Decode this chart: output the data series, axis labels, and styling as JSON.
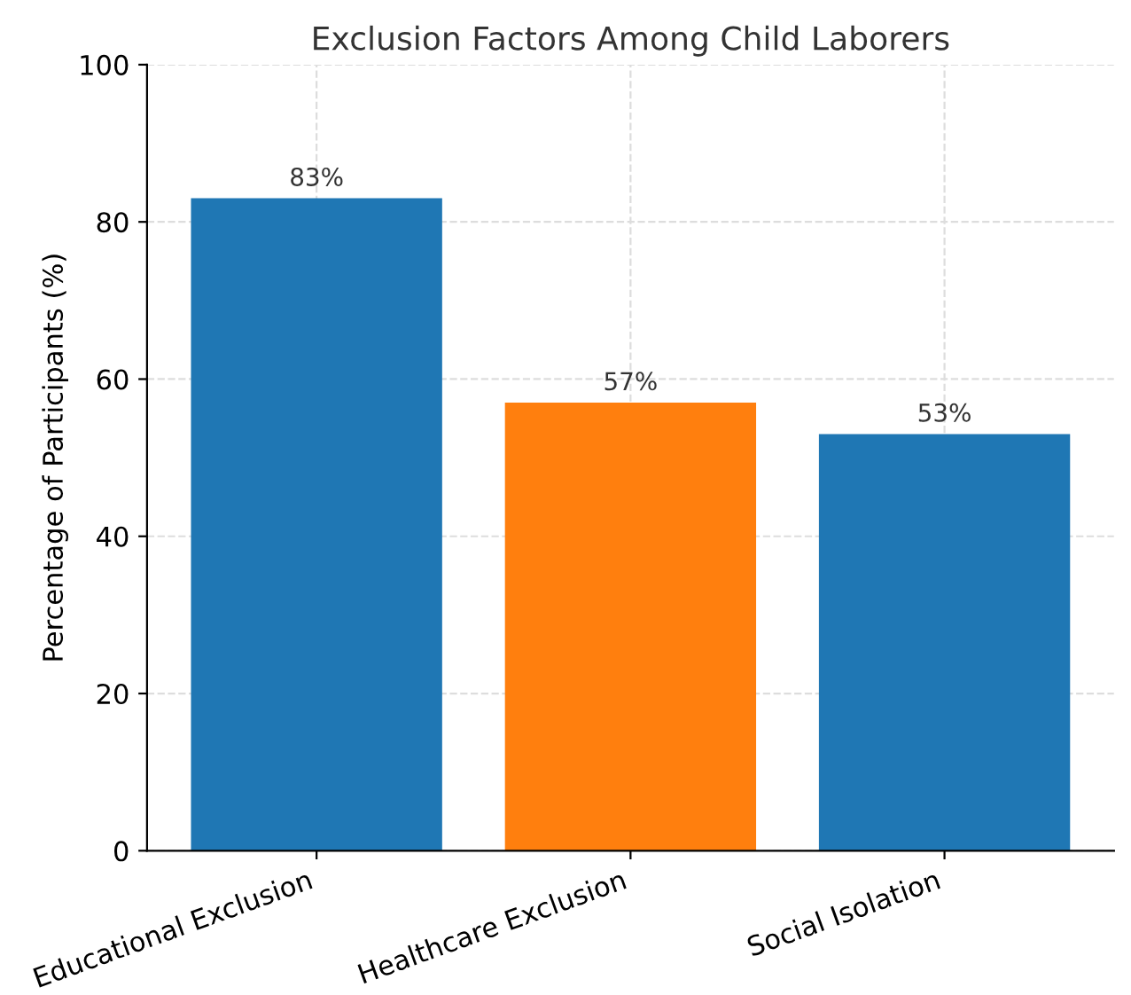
{
  "chart_data": {
    "type": "bar",
    "title": "Exclusion Factors Among Child Laborers",
    "ylabel": "Percentage of Participants (%)",
    "categories": [
      "Educational Exclusion",
      "Healthcare Exclusion",
      "Social Isolation"
    ],
    "values": [
      83,
      57,
      53
    ],
    "colors": [
      "#1f77b4",
      "#ff7f0e",
      "#1f77b4"
    ],
    "value_labels": [
      "83%",
      "57%",
      "53%"
    ],
    "ylim": [
      0,
      100
    ],
    "yticks": [
      0,
      20,
      40,
      60,
      80,
      100
    ],
    "grid": true
  }
}
